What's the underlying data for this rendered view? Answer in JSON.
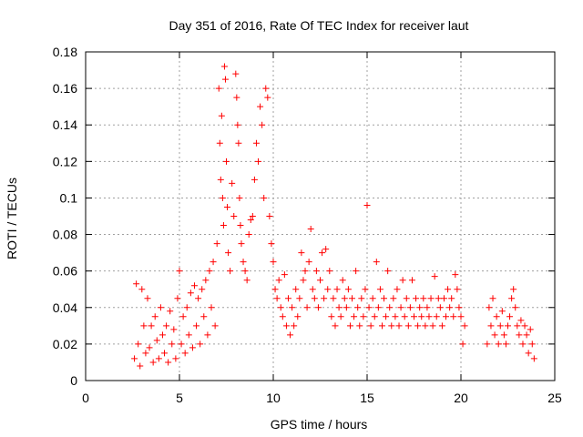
{
  "chart_data": {
    "type": "scatter",
    "title": "Day 351 of 2016, Rate Of TEC Index for receiver laut",
    "xlabel": "GPS time / hours",
    "ylabel": "ROTI / TECUs",
    "xlim": [
      0,
      25
    ],
    "ylim": [
      0,
      0.18
    ],
    "xticks": [
      0,
      5,
      10,
      15,
      20,
      25
    ],
    "yticks": [
      0,
      0.02,
      0.04,
      0.06,
      0.08,
      0.1,
      0.12,
      0.14,
      0.16,
      0.18
    ],
    "xtick_labels": [
      "0",
      "5",
      "10",
      "15",
      "20",
      "25"
    ],
    "ytick_labels": [
      "0",
      "0.02",
      "0.04",
      "0.06",
      "0.08",
      "0.1",
      "0.12",
      "0.14",
      "0.16",
      "0.18"
    ],
    "grid": true,
    "marker": "+",
    "color": "#ff0000",
    "series": [
      {
        "points": [
          [
            2.6,
            0.012
          ],
          [
            2.7,
            0.053
          ],
          [
            2.8,
            0.02
          ],
          [
            2.9,
            0.008
          ],
          [
            3.0,
            0.05
          ],
          [
            3.1,
            0.03
          ],
          [
            3.2,
            0.015
          ],
          [
            3.3,
            0.045
          ],
          [
            3.4,
            0.018
          ],
          [
            3.5,
            0.03
          ],
          [
            3.6,
            0.01
          ],
          [
            3.7,
            0.035
          ],
          [
            3.8,
            0.022
          ],
          [
            3.9,
            0.012
          ],
          [
            4.0,
            0.04
          ],
          [
            4.1,
            0.025
          ],
          [
            4.2,
            0.015
          ],
          [
            4.3,
            0.03
          ],
          [
            4.4,
            0.01
          ],
          [
            4.5,
            0.038
          ],
          [
            4.6,
            0.02
          ],
          [
            4.7,
            0.028
          ],
          [
            4.8,
            0.012
          ],
          [
            4.9,
            0.045
          ],
          [
            5.0,
            0.06
          ],
          [
            5.1,
            0.02
          ],
          [
            5.2,
            0.035
          ],
          [
            5.3,
            0.015
          ],
          [
            5.4,
            0.04
          ],
          [
            5.5,
            0.025
          ],
          [
            5.6,
            0.048
          ],
          [
            5.7,
            0.018
          ],
          [
            5.8,
            0.052
          ],
          [
            5.9,
            0.03
          ],
          [
            6.0,
            0.045
          ],
          [
            6.1,
            0.02
          ],
          [
            6.2,
            0.05
          ],
          [
            6.3,
            0.035
          ],
          [
            6.4,
            0.055
          ],
          [
            6.5,
            0.025
          ],
          [
            6.6,
            0.06
          ],
          [
            6.7,
            0.04
          ],
          [
            6.8,
            0.065
          ],
          [
            6.9,
            0.03
          ],
          [
            7.0,
            0.075
          ],
          [
            7.1,
            0.16
          ],
          [
            7.15,
            0.13
          ],
          [
            7.2,
            0.11
          ],
          [
            7.25,
            0.145
          ],
          [
            7.3,
            0.1
          ],
          [
            7.35,
            0.085
          ],
          [
            7.4,
            0.172
          ],
          [
            7.45,
            0.165
          ],
          [
            7.5,
            0.12
          ],
          [
            7.55,
            0.095
          ],
          [
            7.6,
            0.07
          ],
          [
            7.7,
            0.06
          ],
          [
            7.8,
            0.108
          ],
          [
            7.9,
            0.09
          ],
          [
            8.0,
            0.168
          ],
          [
            8.05,
            0.155
          ],
          [
            8.1,
            0.14
          ],
          [
            8.15,
            0.13
          ],
          [
            8.2,
            0.1
          ],
          [
            8.25,
            0.085
          ],
          [
            8.3,
            0.075
          ],
          [
            8.4,
            0.065
          ],
          [
            8.5,
            0.06
          ],
          [
            8.6,
            0.055
          ],
          [
            8.7,
            0.08
          ],
          [
            8.8,
            0.088
          ],
          [
            8.9,
            0.09
          ],
          [
            9.0,
            0.11
          ],
          [
            9.1,
            0.13
          ],
          [
            9.2,
            0.12
          ],
          [
            9.3,
            0.15
          ],
          [
            9.4,
            0.14
          ],
          [
            9.5,
            0.1
          ],
          [
            9.6,
            0.16
          ],
          [
            9.7,
            0.155
          ],
          [
            9.8,
            0.09
          ],
          [
            9.9,
            0.075
          ],
          [
            10.0,
            0.065
          ],
          [
            10.1,
            0.05
          ],
          [
            10.2,
            0.045
          ],
          [
            10.3,
            0.055
          ],
          [
            10.4,
            0.04
          ],
          [
            10.5,
            0.035
          ],
          [
            10.6,
            0.058
          ],
          [
            10.7,
            0.03
          ],
          [
            10.8,
            0.045
          ],
          [
            10.9,
            0.025
          ],
          [
            11.0,
            0.04
          ],
          [
            11.1,
            0.03
          ],
          [
            11.2,
            0.05
          ],
          [
            11.3,
            0.035
          ],
          [
            11.4,
            0.045
          ],
          [
            11.5,
            0.07
          ],
          [
            11.6,
            0.055
          ],
          [
            11.7,
            0.06
          ],
          [
            11.8,
            0.04
          ],
          [
            11.9,
            0.065
          ],
          [
            12.0,
            0.083
          ],
          [
            12.1,
            0.05
          ],
          [
            12.2,
            0.045
          ],
          [
            12.3,
            0.06
          ],
          [
            12.4,
            0.04
          ],
          [
            12.5,
            0.055
          ],
          [
            12.6,
            0.07
          ],
          [
            12.7,
            0.045
          ],
          [
            12.8,
            0.072
          ],
          [
            12.9,
            0.05
          ],
          [
            13.0,
            0.06
          ],
          [
            13.1,
            0.035
          ],
          [
            13.2,
            0.045
          ],
          [
            13.3,
            0.03
          ],
          [
            13.4,
            0.05
          ],
          [
            13.5,
            0.04
          ],
          [
            13.6,
            0.035
          ],
          [
            13.7,
            0.055
          ],
          [
            13.8,
            0.045
          ],
          [
            13.9,
            0.04
          ],
          [
            14.0,
            0.05
          ],
          [
            14.1,
            0.03
          ],
          [
            14.2,
            0.045
          ],
          [
            14.3,
            0.035
          ],
          [
            14.4,
            0.06
          ],
          [
            14.5,
            0.04
          ],
          [
            14.6,
            0.03
          ],
          [
            14.7,
            0.045
          ],
          [
            14.8,
            0.035
          ],
          [
            14.9,
            0.05
          ],
          [
            15.0,
            0.096
          ],
          [
            15.1,
            0.04
          ],
          [
            15.2,
            0.03
          ],
          [
            15.3,
            0.045
          ],
          [
            15.4,
            0.035
          ],
          [
            15.5,
            0.065
          ],
          [
            15.6,
            0.04
          ],
          [
            15.7,
            0.05
          ],
          [
            15.8,
            0.03
          ],
          [
            15.9,
            0.045
          ],
          [
            16.0,
            0.035
          ],
          [
            16.1,
            0.06
          ],
          [
            16.2,
            0.04
          ],
          [
            16.3,
            0.03
          ],
          [
            16.4,
            0.045
          ],
          [
            16.5,
            0.035
          ],
          [
            16.6,
            0.05
          ],
          [
            16.7,
            0.03
          ],
          [
            16.8,
            0.04
          ],
          [
            16.9,
            0.055
          ],
          [
            17.0,
            0.035
          ],
          [
            17.1,
            0.045
          ],
          [
            17.2,
            0.03
          ],
          [
            17.3,
            0.04
          ],
          [
            17.4,
            0.055
          ],
          [
            17.5,
            0.035
          ],
          [
            17.6,
            0.045
          ],
          [
            17.7,
            0.03
          ],
          [
            17.8,
            0.04
          ],
          [
            17.9,
            0.035
          ],
          [
            18.0,
            0.045
          ],
          [
            18.1,
            0.03
          ],
          [
            18.2,
            0.04
          ],
          [
            18.3,
            0.035
          ],
          [
            18.4,
            0.045
          ],
          [
            18.5,
            0.03
          ],
          [
            18.6,
            0.057
          ],
          [
            18.7,
            0.035
          ],
          [
            18.8,
            0.045
          ],
          [
            18.9,
            0.04
          ],
          [
            19.0,
            0.03
          ],
          [
            19.1,
            0.045
          ],
          [
            19.2,
            0.035
          ],
          [
            19.3,
            0.05
          ],
          [
            19.4,
            0.04
          ],
          [
            19.5,
            0.045
          ],
          [
            19.6,
            0.035
          ],
          [
            19.7,
            0.058
          ],
          [
            19.8,
            0.05
          ],
          [
            19.9,
            0.04
          ],
          [
            20.0,
            0.035
          ],
          [
            20.1,
            0.02
          ],
          [
            20.2,
            0.03
          ],
          [
            21.4,
            0.02
          ],
          [
            21.5,
            0.04
          ],
          [
            21.6,
            0.03
          ],
          [
            21.7,
            0.045
          ],
          [
            21.8,
            0.025
          ],
          [
            21.9,
            0.035
          ],
          [
            22.0,
            0.02
          ],
          [
            22.1,
            0.03
          ],
          [
            22.2,
            0.038
          ],
          [
            22.3,
            0.025
          ],
          [
            22.4,
            0.02
          ],
          [
            22.5,
            0.03
          ],
          [
            22.6,
            0.035
          ],
          [
            22.7,
            0.045
          ],
          [
            22.8,
            0.05
          ],
          [
            22.9,
            0.04
          ],
          [
            23.0,
            0.03
          ],
          [
            23.1,
            0.025
          ],
          [
            23.2,
            0.033
          ],
          [
            23.3,
            0.02
          ],
          [
            23.4,
            0.03
          ],
          [
            23.5,
            0.025
          ],
          [
            23.6,
            0.015
          ],
          [
            23.7,
            0.028
          ],
          [
            23.8,
            0.02
          ],
          [
            23.9,
            0.012
          ]
        ]
      }
    ]
  }
}
